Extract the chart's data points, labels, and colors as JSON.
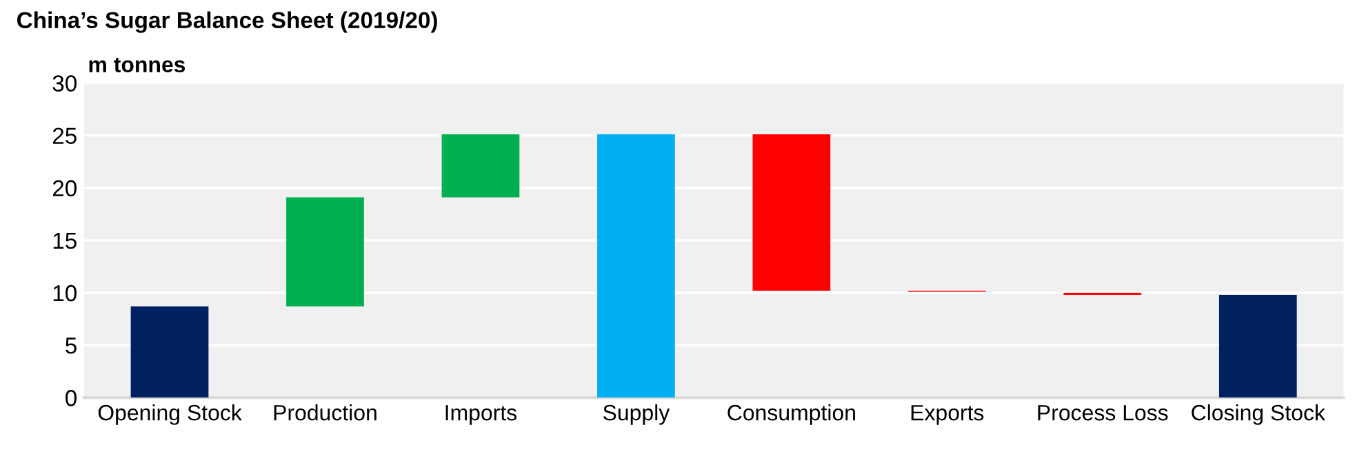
{
  "chart_data": {
    "type": "bar",
    "title": "China’s Sugar Balance Sheet (2019/20)",
    "ylabel": "m tonnes",
    "categories": [
      "Opening Stock",
      "Production",
      "Imports",
      "Supply",
      "Consumption",
      "Exports",
      "Process Loss",
      "Closing Stock"
    ],
    "values": [
      8.7,
      10.4,
      6.0,
      25.1,
      14.9,
      0.1,
      0.2,
      9.8
    ],
    "base": [
      0,
      8.7,
      19.1,
      0,
      10.2,
      10.1,
      9.8,
      0
    ],
    "colors": [
      "#002060",
      "#00b050",
      "#00b050",
      "#00b0f0",
      "#ff0000",
      "#ff0000",
      "#ff0000",
      "#002060"
    ],
    "ylim": [
      0,
      30
    ],
    "yticks": [
      0,
      5,
      10,
      15,
      20,
      25,
      30
    ],
    "grid": "y"
  }
}
